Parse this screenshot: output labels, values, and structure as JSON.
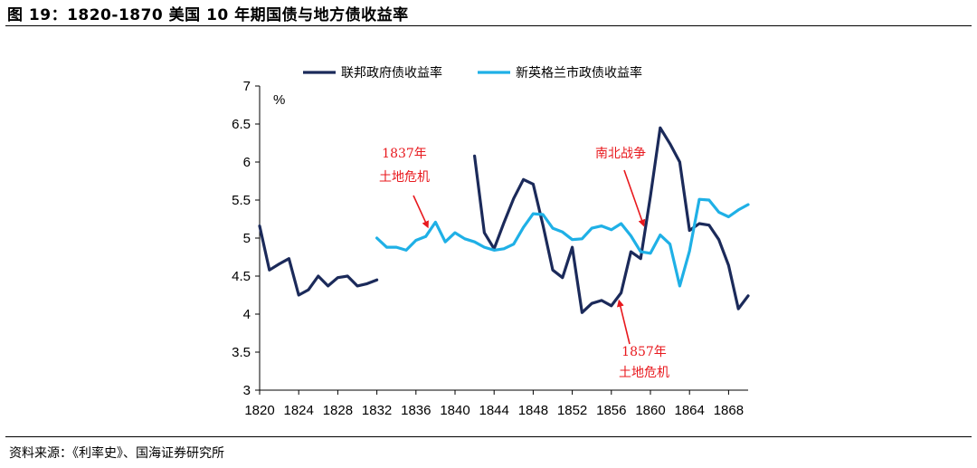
{
  "figure": {
    "title": "图 19：1820-1870 美国 10 年期国债与地方债收益率",
    "source": "资料来源：《利率史》、国海证券研究所"
  },
  "chart_data": {
    "type": "line",
    "unit_label": "%",
    "ylim": [
      3,
      7
    ],
    "y_ticks": [
      "3",
      "3.5",
      "4",
      "4.5",
      "5",
      "5.5",
      "6",
      "6.5",
      "7"
    ],
    "xlim": [
      1820,
      1870
    ],
    "x_ticks": [
      "1820",
      "1824",
      "1828",
      "1832",
      "1836",
      "1840",
      "1844",
      "1848",
      "1852",
      "1856",
      "1860",
      "1864",
      "1868"
    ],
    "legend_position": "top",
    "series": [
      {
        "name": "联邦政府债收益率",
        "color": "#1b2a5a",
        "points": [
          [
            1820,
            5.16
          ],
          [
            1821,
            4.58
          ],
          [
            1822,
            4.66
          ],
          [
            1823,
            4.73
          ],
          [
            1824,
            4.25
          ],
          [
            1825,
            4.32
          ],
          [
            1826,
            4.5
          ],
          [
            1827,
            4.37
          ],
          [
            1828,
            4.48
          ],
          [
            1829,
            4.5
          ],
          [
            1830,
            4.37
          ],
          [
            1831,
            4.4
          ],
          [
            1832,
            4.45
          ],
          null,
          [
            1842,
            6.08
          ],
          [
            1843,
            5.07
          ],
          [
            1844,
            4.86
          ],
          [
            1845,
            5.2
          ],
          [
            1846,
            5.52
          ],
          [
            1847,
            5.77
          ],
          [
            1848,
            5.71
          ],
          [
            1849,
            5.17
          ],
          [
            1850,
            4.58
          ],
          [
            1851,
            4.48
          ],
          [
            1852,
            4.88
          ],
          [
            1853,
            4.02
          ],
          [
            1854,
            4.14
          ],
          [
            1855,
            4.18
          ],
          [
            1856,
            4.11
          ],
          [
            1857,
            4.28
          ],
          [
            1858,
            4.82
          ],
          [
            1859,
            4.73
          ],
          [
            1860,
            5.55
          ],
          [
            1861,
            6.45
          ],
          [
            1862,
            6.24
          ],
          [
            1863,
            6.0
          ],
          [
            1864,
            5.1
          ],
          [
            1865,
            5.19
          ],
          [
            1866,
            5.17
          ],
          [
            1867,
            4.98
          ],
          [
            1868,
            4.64
          ],
          [
            1869,
            4.07
          ],
          [
            1870,
            4.24
          ]
        ]
      },
      {
        "name": "新英格兰市政债收益率",
        "color": "#1fb0e6",
        "points": [
          [
            1832,
            5.0
          ],
          [
            1833,
            4.88
          ],
          [
            1834,
            4.88
          ],
          [
            1835,
            4.84
          ],
          [
            1836,
            4.97
          ],
          [
            1837,
            5.02
          ],
          [
            1838,
            5.21
          ],
          [
            1839,
            4.95
          ],
          [
            1840,
            5.07
          ],
          [
            1841,
            4.99
          ],
          [
            1842,
            4.95
          ],
          [
            1843,
            4.88
          ],
          [
            1844,
            4.84
          ],
          [
            1845,
            4.86
          ],
          [
            1846,
            4.92
          ],
          [
            1847,
            5.14
          ],
          [
            1848,
            5.32
          ],
          [
            1849,
            5.31
          ],
          [
            1850,
            5.13
          ],
          [
            1851,
            5.08
          ],
          [
            1852,
            4.98
          ],
          [
            1853,
            4.99
          ],
          [
            1854,
            5.13
          ],
          [
            1855,
            5.16
          ],
          [
            1856,
            5.11
          ],
          [
            1857,
            5.19
          ],
          [
            1858,
            5.03
          ],
          [
            1859,
            4.82
          ],
          [
            1860,
            4.8
          ],
          [
            1861,
            5.04
          ],
          [
            1862,
            4.92
          ],
          [
            1863,
            4.37
          ],
          [
            1864,
            4.83
          ],
          [
            1865,
            5.51
          ],
          [
            1866,
            5.5
          ],
          [
            1867,
            5.34
          ],
          [
            1868,
            5.28
          ],
          [
            1869,
            5.37
          ],
          [
            1870,
            5.44
          ]
        ]
      }
    ],
    "annotations": [
      {
        "lines": [
          "1837年",
          "土地危机"
        ],
        "target": [
          1837.2,
          5.15
        ],
        "anchor": "above-left"
      },
      {
        "lines": [
          "南北战争"
        ],
        "target": [
          1859.3,
          5.17
        ],
        "anchor": "above"
      },
      {
        "lines": [
          "1857年",
          "土地危机"
        ],
        "target": [
          1856.8,
          4.17
        ],
        "anchor": "below"
      }
    ]
  }
}
